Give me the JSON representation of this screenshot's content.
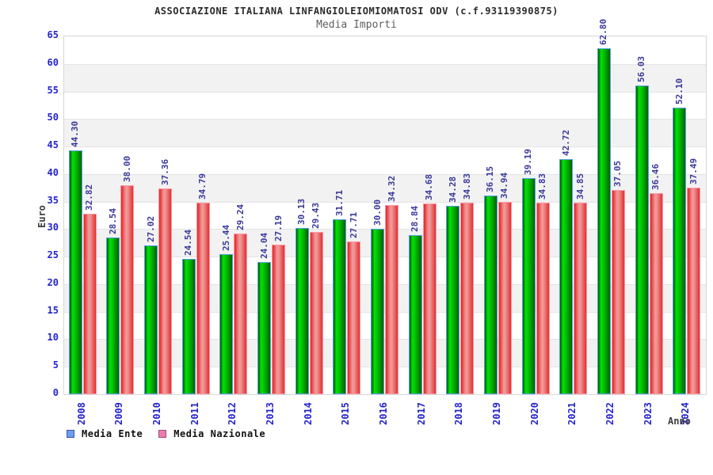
{
  "chart_data": {
    "type": "bar",
    "title": "ASSOCIAZIONE ITALIANA LINFANGIOLEIOMIOMATOSI ODV (c.f.93119390875)",
    "subtitle": "Media Importi",
    "xlabel": "Anno",
    "ylabel": "Euro",
    "ylim": [
      0,
      65
    ],
    "ytick_step": 5,
    "yticks": [
      0,
      5,
      10,
      15,
      20,
      25,
      30,
      35,
      40,
      45,
      50,
      55,
      60,
      65
    ],
    "grid": "horizontal-bands",
    "legend_position": "bottom-left",
    "categories": [
      "2008",
      "2009",
      "2010",
      "2011",
      "2012",
      "2013",
      "2014",
      "2015",
      "2016",
      "2017",
      "2018",
      "2019",
      "2020",
      "2021",
      "2022",
      "2023",
      "2024"
    ],
    "series": [
      {
        "name": "Media Ente",
        "values": [
          44.3,
          28.54,
          27.02,
          24.54,
          25.44,
          24.04,
          30.13,
          31.71,
          30.0,
          28.84,
          34.28,
          36.15,
          39.19,
          42.72,
          62.8,
          56.03,
          52.1
        ]
      },
      {
        "name": "Media Nazionale",
        "values": [
          32.82,
          38.0,
          37.36,
          34.79,
          29.24,
          27.19,
          29.43,
          27.71,
          34.32,
          34.68,
          34.83,
          34.94,
          34.83,
          34.85,
          37.05,
          36.46,
          37.49
        ]
      }
    ],
    "colors": {
      "bar_ente": "#00c003",
      "bar_ente_border": "#56a0e0",
      "bar_nazionale": "#e42c2c",
      "bar_nazionale_border": "#ff97a6",
      "legend_ente_swatch": "#6d9eeb",
      "legend_nazionale_swatch": "#ee7bae",
      "tick_label": "#2424cb",
      "value_label": "#39399b",
      "band_gray": "#f2f2f2"
    }
  }
}
